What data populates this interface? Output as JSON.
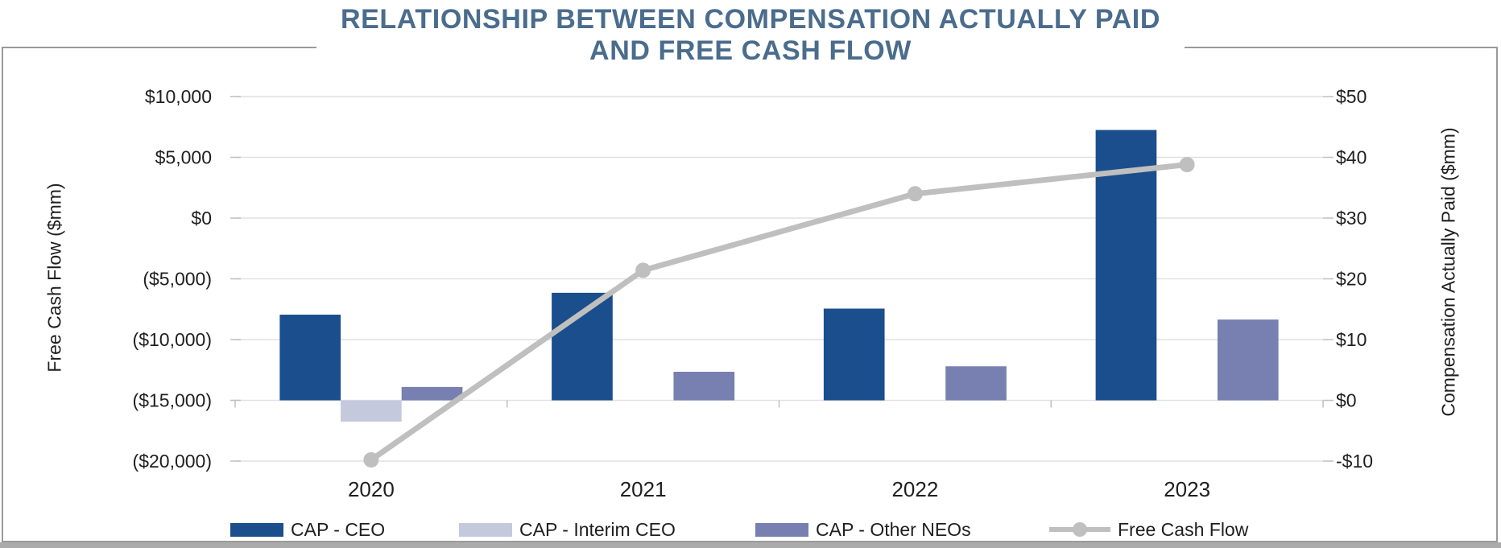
{
  "title": {
    "line1": "RELATIONSHIP BETWEEN COMPENSATION ACTUALLY PAID",
    "line2": "AND FREE CASH FLOW"
  },
  "colors": {
    "title_text": "#4a6c8d",
    "cap_ceo": "#1b4e8c",
    "cap_interim_ceo": "#c5c9de",
    "cap_other_neos": "#7780b0",
    "fcf_line": "#bfbfbf",
    "gridline": "#e1e1e1",
    "tick": "#bfbfbf",
    "axis_text": "#1f1f1f"
  },
  "chart_data": {
    "type": "combo-bar-line",
    "categories": [
      "2020",
      "2021",
      "2022",
      "2023"
    ],
    "bar_series": [
      {
        "name": "CAP - CEO",
        "axis": "right",
        "color_key": "cap_ceo",
        "values": [
          14.1,
          17.7,
          15.1,
          44.5
        ]
      },
      {
        "name": "CAP - Interim CEO",
        "axis": "right",
        "color_key": "cap_interim_ceo",
        "values": [
          -3.5,
          null,
          null,
          null
        ]
      },
      {
        "name": "CAP - Other NEOs",
        "axis": "right",
        "color_key": "cap_other_neos",
        "values": [
          2.2,
          4.7,
          5.6,
          13.3
        ]
      }
    ],
    "line_series": {
      "name": "Free Cash Flow",
      "axis": "left",
      "color_key": "fcf_line",
      "values": [
        -19900,
        -4300,
        2000,
        4400
      ]
    },
    "left_axis": {
      "title": "Free Cash Flow ($mm)",
      "min": -20000,
      "max": 10000,
      "tick_step": 5000,
      "tick_labels_top_to_bottom": [
        "$10,000",
        "$5,000",
        "$0",
        "($5,000)",
        "($10,000)",
        "($15,000)",
        "($20,000)"
      ]
    },
    "right_axis": {
      "title": "Compensation Actually Paid ($mm)",
      "min": -10,
      "max": 50,
      "tick_step": 10,
      "tick_labels_top_to_bottom": [
        "$50",
        "$40",
        "$30",
        "$20",
        "$10",
        "$0",
        "-$10"
      ]
    },
    "legend_position": "bottom",
    "grid": "horizontal"
  }
}
